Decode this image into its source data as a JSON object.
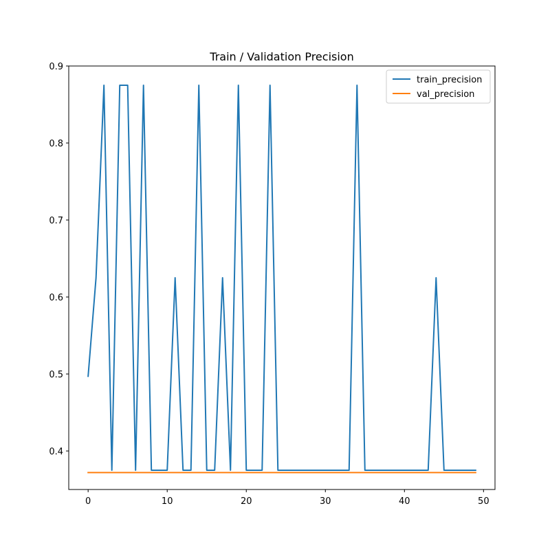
{
  "chart_data": {
    "type": "line",
    "title": "Train / Validation Precision",
    "xlabel": "",
    "ylabel": "",
    "xlim": [
      -2.45,
      51.45
    ],
    "ylim": [
      0.35,
      0.9
    ],
    "xticks": [
      0,
      10,
      20,
      30,
      40,
      50
    ],
    "yticks": [
      0.4,
      0.5,
      0.6,
      0.7,
      0.8,
      0.9
    ],
    "xtick_labels": [
      "0",
      "10",
      "20",
      "30",
      "40",
      "50"
    ],
    "ytick_labels": [
      "0.4",
      "0.5",
      "0.6",
      "0.7",
      "0.8",
      "0.9"
    ],
    "grid": false,
    "legend_position": "top-right",
    "x": [
      0,
      1,
      2,
      3,
      4,
      5,
      6,
      7,
      8,
      9,
      10,
      11,
      12,
      13,
      14,
      15,
      16,
      17,
      18,
      19,
      20,
      21,
      22,
      23,
      24,
      25,
      26,
      27,
      28,
      29,
      30,
      31,
      32,
      33,
      34,
      35,
      36,
      37,
      38,
      39,
      40,
      41,
      42,
      43,
      44,
      45,
      46,
      47,
      48,
      49
    ],
    "series": [
      {
        "name": "train_precision",
        "color": "#1f77b4",
        "values": [
          0.497,
          0.625,
          0.875,
          0.375,
          0.875,
          0.875,
          0.375,
          0.875,
          0.375,
          0.375,
          0.375,
          0.625,
          0.375,
          0.375,
          0.875,
          0.375,
          0.375,
          0.625,
          0.375,
          0.875,
          0.375,
          0.375,
          0.375,
          0.875,
          0.375,
          0.375,
          0.375,
          0.375,
          0.375,
          0.375,
          0.375,
          0.375,
          0.375,
          0.375,
          0.875,
          0.375,
          0.375,
          0.375,
          0.375,
          0.375,
          0.375,
          0.375,
          0.375,
          0.375,
          0.625,
          0.375,
          0.375,
          0.375,
          0.375,
          0.375
        ]
      },
      {
        "name": "val_precision",
        "color": "#ff7f0e",
        "values": [
          0.372,
          0.372,
          0.372,
          0.372,
          0.372,
          0.372,
          0.372,
          0.372,
          0.372,
          0.372,
          0.372,
          0.372,
          0.372,
          0.372,
          0.372,
          0.372,
          0.372,
          0.372,
          0.372,
          0.372,
          0.372,
          0.372,
          0.372,
          0.372,
          0.372,
          0.372,
          0.372,
          0.372,
          0.372,
          0.372,
          0.372,
          0.372,
          0.372,
          0.372,
          0.372,
          0.372,
          0.372,
          0.372,
          0.372,
          0.372,
          0.372,
          0.372,
          0.372,
          0.372,
          0.372,
          0.372,
          0.372,
          0.372,
          0.372,
          0.372
        ]
      }
    ]
  }
}
